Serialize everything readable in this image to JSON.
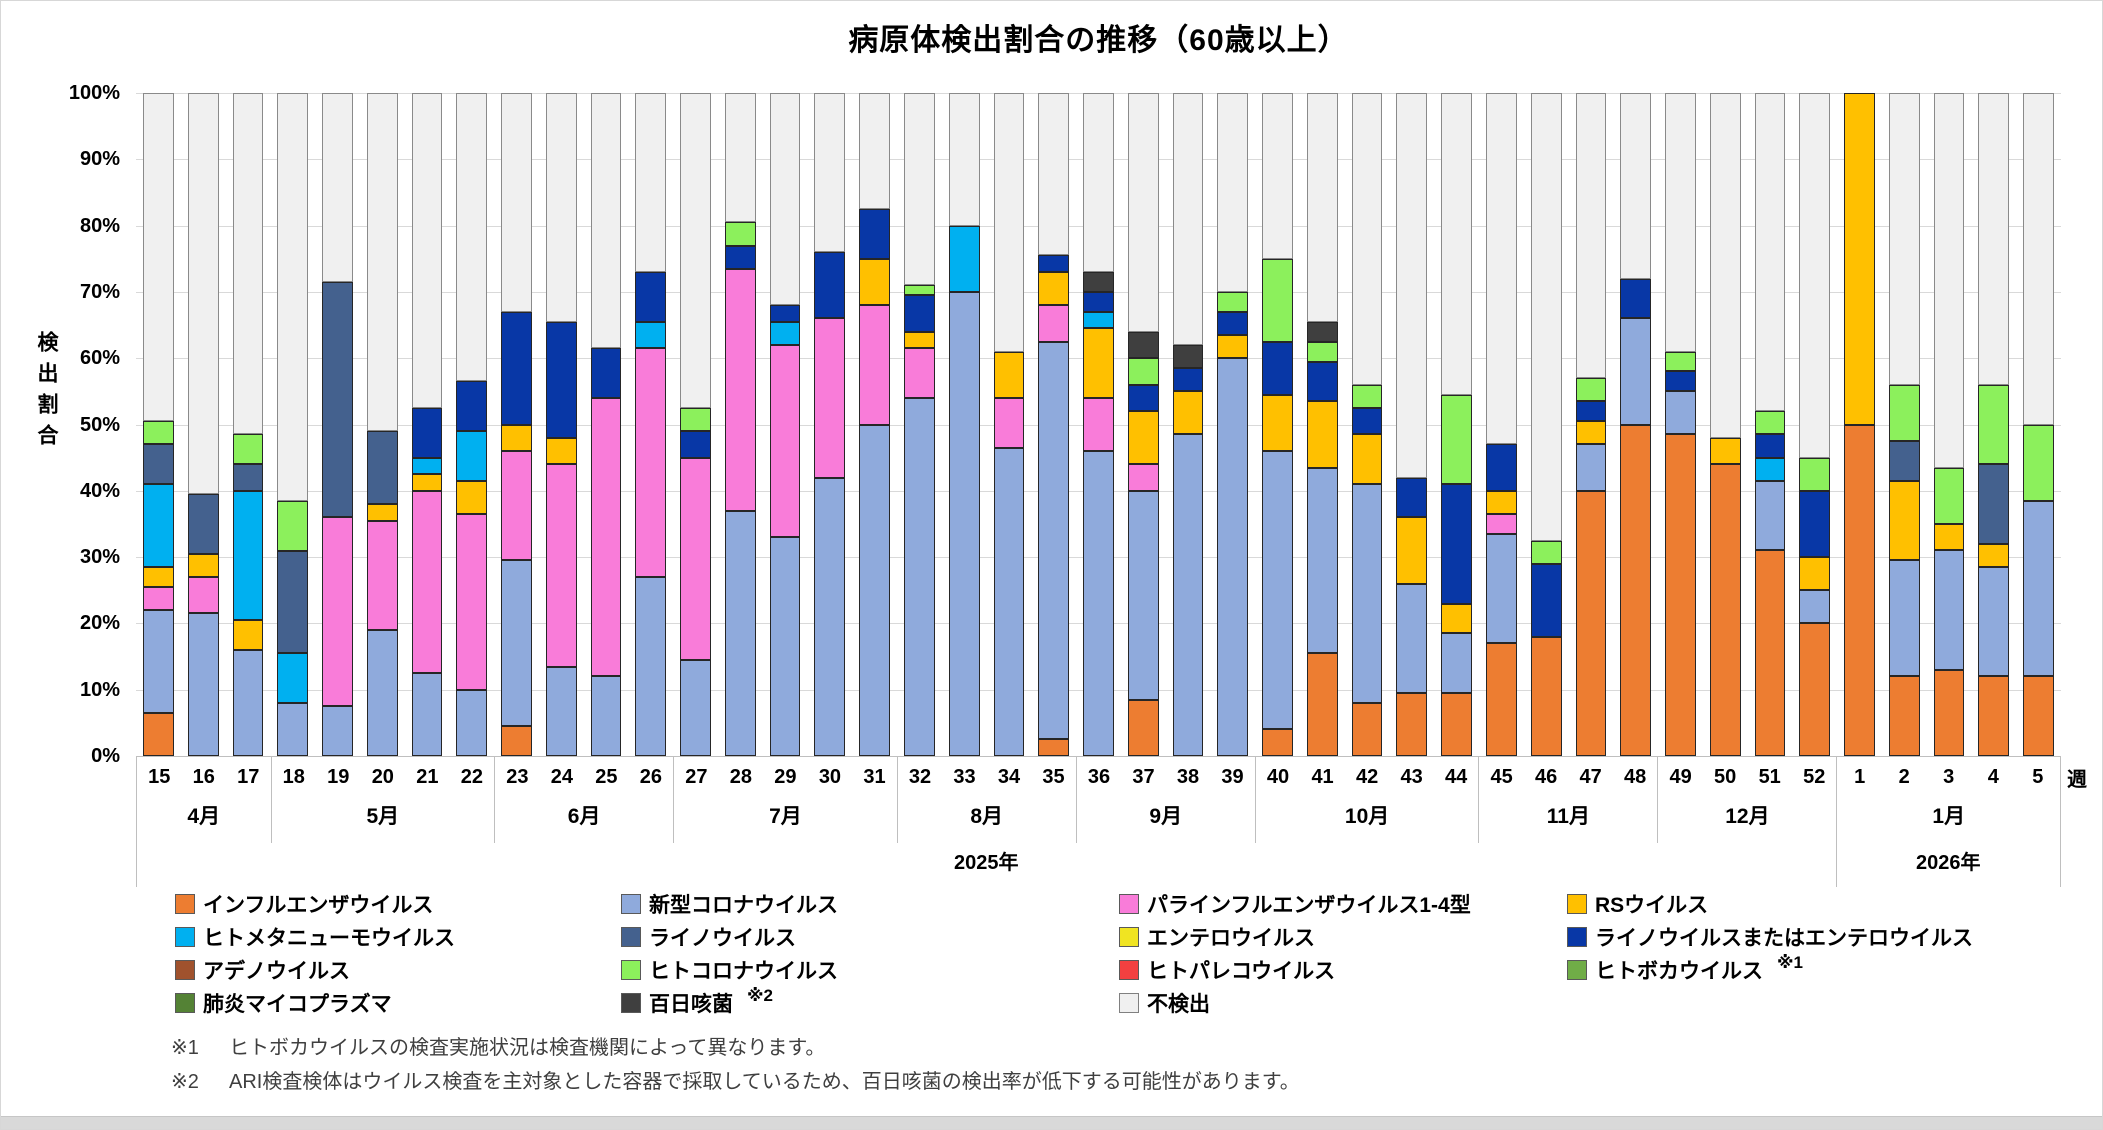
{
  "title": "病原体検出割合の推移（60歳以上）",
  "y_axis": {
    "title": "検出割合",
    "tick_suffix": "%",
    "min": 0,
    "max": 100,
    "step": 10
  },
  "x_axis": {
    "unit_label": "週"
  },
  "years": [
    {
      "label": "2025年",
      "span": 38
    },
    {
      "label": "2026年",
      "span": 5
    }
  ],
  "footnotes": [
    {
      "mark": "※1",
      "text": "ヒトボカウイルスの検査実施状況は検査機関によって異なります。"
    },
    {
      "mark": "※2",
      "text": "ARI検査検体はウイルス検査を主対象とした容器で採取しているため、百日咳菌の検出率が低下する可能性があります。"
    }
  ],
  "chart_data": {
    "type": "bar",
    "stacked": true,
    "title": "病原体検出割合の推移（60歳以上）",
    "ylabel": "検出割合",
    "ylim": [
      0,
      100
    ],
    "grid": true,
    "legend_position": "bottom",
    "series": [
      {
        "id": "flu",
        "label": "インフルエンザウイルス",
        "color": "#ED7D31",
        "note": ""
      },
      {
        "id": "covid",
        "label": "新型コロナウイルス",
        "color": "#8FAADC",
        "note": ""
      },
      {
        "id": "para",
        "label": "パラインフルエンザウイルス1-4型",
        "color": "#F97CD9",
        "note": ""
      },
      {
        "id": "rs",
        "label": "RSウイルス",
        "color": "#FFC000",
        "note": ""
      },
      {
        "id": "hmpv",
        "label": "ヒトメタニューモウイルス",
        "color": "#00B0F0",
        "note": ""
      },
      {
        "id": "rhino",
        "label": "ライノウイルス",
        "color": "#44618E",
        "note": ""
      },
      {
        "id": "entero",
        "label": "エンテロウイルス",
        "color": "#F0E422",
        "note": ""
      },
      {
        "id": "rhino_entero",
        "label": "ライノウイルスまたはエンテロウイルス",
        "color": "#0837A6",
        "note": ""
      },
      {
        "id": "adeno",
        "label": "アデノウイルス",
        "color": "#A0522D",
        "note": ""
      },
      {
        "id": "hcov",
        "label": "ヒトコロナウイルス",
        "color": "#8CF05C",
        "note": ""
      },
      {
        "id": "parecho",
        "label": "ヒトパレコウイルス",
        "color": "#F24040",
        "note": ""
      },
      {
        "id": "boca",
        "label": "ヒトボカウイルス",
        "color": "#70AD47",
        "note": "※1"
      },
      {
        "id": "myco",
        "label": "肺炎マイコプラズマ",
        "color": "#548235",
        "note": ""
      },
      {
        "id": "pert",
        "label": "百日咳菌",
        "color": "#3F3F3F",
        "note": "※2"
      },
      {
        "id": "none",
        "label": "不検出",
        "color": "#F0F0F0",
        "note": ""
      }
    ],
    "month_groups": [
      {
        "label": "4月",
        "weeks": [
          "15",
          "16",
          "17"
        ]
      },
      {
        "label": "5月",
        "weeks": [
          "18",
          "19",
          "20",
          "21",
          "22"
        ]
      },
      {
        "label": "6月",
        "weeks": [
          "23",
          "24",
          "25",
          "26"
        ]
      },
      {
        "label": "7月",
        "weeks": [
          "27",
          "28",
          "29",
          "30",
          "31"
        ]
      },
      {
        "label": "8月",
        "weeks": [
          "32",
          "33",
          "34",
          "35"
        ]
      },
      {
        "label": "9月",
        "weeks": [
          "36",
          "37",
          "38",
          "39"
        ]
      },
      {
        "label": "10月",
        "weeks": [
          "40",
          "41",
          "42",
          "43",
          "44"
        ]
      },
      {
        "label": "11月",
        "weeks": [
          "45",
          "46",
          "47",
          "48"
        ]
      },
      {
        "label": "12月",
        "weeks": [
          "49",
          "50",
          "51",
          "52"
        ]
      },
      {
        "label": "1月",
        "weeks": [
          "1",
          "2",
          "3",
          "4",
          "5"
        ]
      }
    ],
    "bars": [
      {
        "week": "15",
        "values": {
          "flu": 6.5,
          "covid": 15.5,
          "para": 3.5,
          "rs": 3,
          "hmpv": 12.5,
          "rhino": 6,
          "hcov": 3.5
        }
      },
      {
        "week": "16",
        "values": {
          "covid": 21.5,
          "para": 5.5,
          "rs": 3.5,
          "rhino": 9
        }
      },
      {
        "week": "17",
        "values": {
          "covid": 16,
          "rs": 4.5,
          "hmpv": 19.5,
          "rhino": 4,
          "hcov": 4.5
        }
      },
      {
        "week": "18",
        "values": {
          "covid": 8,
          "hmpv": 7.5,
          "rhino": 15.5,
          "hcov": 7.5
        }
      },
      {
        "week": "19",
        "values": {
          "covid": 7.5,
          "para": 28.5,
          "rhino": 35.5
        }
      },
      {
        "week": "20",
        "values": {
          "covid": 19,
          "para": 16.5,
          "rs": 2.5,
          "rhino": 11
        }
      },
      {
        "week": "21",
        "values": {
          "covid": 12.5,
          "para": 27.5,
          "rs": 2.5,
          "hmpv": 2.5,
          "rhino_entero": 7.5
        }
      },
      {
        "week": "22",
        "values": {
          "covid": 10,
          "para": 26.5,
          "rs": 5,
          "hmpv": 7.5,
          "rhino_entero": 7.5
        }
      },
      {
        "week": "23",
        "values": {
          "flu": 4.5,
          "covid": 25,
          "para": 16.5,
          "rs": 4,
          "rhino_entero": 17
        }
      },
      {
        "week": "24",
        "values": {
          "covid": 13.5,
          "para": 30.5,
          "rs": 4,
          "rhino_entero": 17.5
        }
      },
      {
        "week": "25",
        "values": {
          "covid": 12,
          "para": 42,
          "rhino_entero": 7.5
        }
      },
      {
        "week": "26",
        "values": {
          "covid": 27,
          "para": 34.5,
          "hmpv": 4,
          "rhino_entero": 7.5
        }
      },
      {
        "week": "27",
        "values": {
          "covid": 14.5,
          "para": 30.5,
          "rhino_entero": 4,
          "hcov": 3.5
        }
      },
      {
        "week": "28",
        "values": {
          "covid": 37,
          "para": 36.5,
          "rhino_entero": 3.5,
          "hcov": 3.5
        }
      },
      {
        "week": "29",
        "values": {
          "covid": 33,
          "para": 29,
          "hmpv": 3.5,
          "rhino_entero": 2.5
        }
      },
      {
        "week": "30",
        "values": {
          "covid": 42,
          "para": 24,
          "rhino_entero": 10
        }
      },
      {
        "week": "31",
        "values": {
          "covid": 50,
          "para": 18,
          "rs": 7,
          "rhino_entero": 7.5
        }
      },
      {
        "week": "32",
        "values": {
          "covid": 54,
          "para": 7.5,
          "rs": 2.5,
          "rhino_entero": 5.5,
          "hcov": 1.5
        }
      },
      {
        "week": "33",
        "values": {
          "covid": 70,
          "hmpv": 10
        }
      },
      {
        "week": "34",
        "values": {
          "covid": 46.5,
          "para": 7.5,
          "rs": 7
        }
      },
      {
        "week": "35",
        "values": {
          "flu": 2.5,
          "covid": 60,
          "para": 5.5,
          "rs": 5,
          "rhino_entero": 2.5
        }
      },
      {
        "week": "36",
        "values": {
          "covid": 46,
          "para": 8,
          "rs": 10.5,
          "hmpv": 2.5,
          "rhino_entero": 3,
          "pert": 3
        }
      },
      {
        "week": "37",
        "values": {
          "flu": 8.5,
          "covid": 31.5,
          "para": 4,
          "rs": 8,
          "rhino_entero": 4,
          "hcov": 4,
          "pert": 4
        }
      },
      {
        "week": "38",
        "values": {
          "covid": 48.5,
          "rs": 6.5,
          "rhino_entero": 3.5,
          "pert": 3.5
        }
      },
      {
        "week": "39",
        "values": {
          "covid": 60,
          "rs": 3.5,
          "rhino_entero": 3.5,
          "hcov": 3
        }
      },
      {
        "week": "40",
        "values": {
          "flu": 4,
          "covid": 42,
          "rs": 8.5,
          "rhino_entero": 8,
          "hcov": 12.5
        }
      },
      {
        "week": "41",
        "values": {
          "flu": 15.5,
          "covid": 28,
          "rs": 10,
          "rhino_entero": 6,
          "hcov": 3,
          "pert": 3
        }
      },
      {
        "week": "42",
        "values": {
          "flu": 8,
          "covid": 33,
          "rs": 7.5,
          "rhino_entero": 4,
          "hcov": 3.5
        }
      },
      {
        "week": "43",
        "values": {
          "flu": 9.5,
          "covid": 16.5,
          "rs": 10,
          "rhino_entero": 6
        }
      },
      {
        "week": "44",
        "values": {
          "flu": 9.5,
          "covid": 9,
          "rs": 4.5,
          "rhino_entero": 18,
          "hcov": 13.5
        }
      },
      {
        "week": "45",
        "values": {
          "flu": 17,
          "covid": 16.5,
          "para": 3,
          "rs": 3.5,
          "rhino_entero": 7
        }
      },
      {
        "week": "46",
        "values": {
          "flu": 18,
          "rhino_entero": 11,
          "hcov": 3.5
        }
      },
      {
        "week": "47",
        "values": {
          "flu": 40,
          "covid": 7,
          "rs": 3.5,
          "rhino_entero": 3,
          "hcov": 3.5
        }
      },
      {
        "week": "48",
        "values": {
          "flu": 50,
          "covid": 16,
          "rhino_entero": 6
        }
      },
      {
        "week": "49",
        "values": {
          "flu": 48.5,
          "covid": 6.5,
          "rhino_entero": 3,
          "hcov": 3
        }
      },
      {
        "week": "50",
        "values": {
          "flu": 44,
          "rs": 4
        }
      },
      {
        "week": "51",
        "values": {
          "flu": 31,
          "covid": 10.5,
          "hmpv": 3.5,
          "rhino_entero": 3.5,
          "hcov": 3.5
        }
      },
      {
        "week": "52",
        "values": {
          "flu": 20,
          "covid": 5,
          "rs": 5,
          "rhino_entero": 10,
          "hcov": 5
        }
      },
      {
        "week": "1",
        "values": {
          "flu": 50,
          "rs": 50
        }
      },
      {
        "week": "2",
        "values": {
          "flu": 12,
          "covid": 17.5,
          "rs": 12,
          "rhino": 6,
          "hcov": 8.5
        }
      },
      {
        "week": "3",
        "values": {
          "flu": 13,
          "covid": 18,
          "rs": 4,
          "hcov": 8.5
        }
      },
      {
        "week": "4",
        "values": {
          "flu": 12,
          "covid": 16.5,
          "rs": 3.5,
          "rhino": 12,
          "hcov": 12
        }
      },
      {
        "week": "5",
        "values": {
          "flu": 12,
          "covid": 26.5,
          "hcov": 11.5
        }
      }
    ]
  }
}
